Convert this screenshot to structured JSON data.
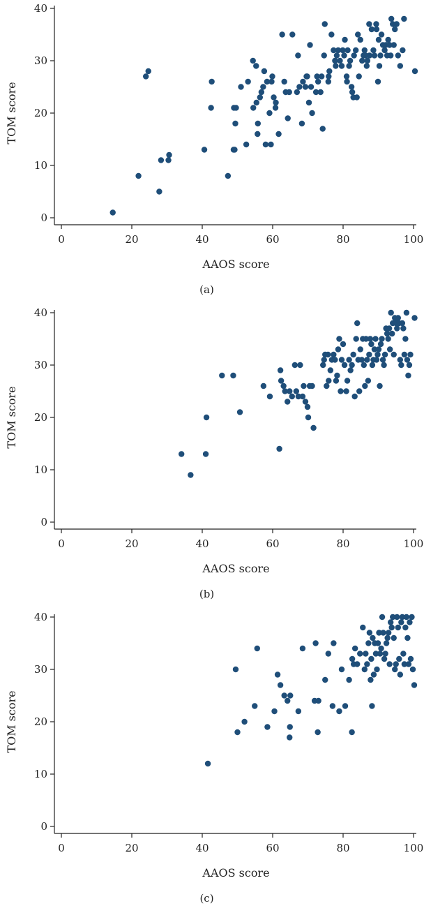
{
  "chart_data": [
    {
      "type": "scatter",
      "panel_label": "(a)",
      "xlabel": "AAOS score",
      "ylabel": "TOM score",
      "xlim": [
        0,
        100
      ],
      "ylim": [
        0,
        40
      ],
      "xticks": [
        0,
        20,
        40,
        60,
        80,
        100
      ],
      "yticks": [
        0,
        10,
        20,
        30,
        40
      ],
      "grid": false,
      "color": "#1f4e79",
      "points": [
        [
          14.6,
          1
        ],
        [
          21.9,
          8
        ],
        [
          24,
          27
        ],
        [
          24.7,
          28
        ],
        [
          27.8,
          5
        ],
        [
          28.3,
          11
        ],
        [
          30.4,
          11
        ],
        [
          30.6,
          12
        ],
        [
          40.6,
          13
        ],
        [
          42.5,
          21
        ],
        [
          42.7,
          26
        ],
        [
          47.3,
          8
        ],
        [
          48.9,
          13
        ],
        [
          49.2,
          13
        ],
        [
          49.4,
          18
        ],
        [
          49,
          21
        ],
        [
          49.6,
          21
        ],
        [
          51,
          25
        ],
        [
          52.5,
          14
        ],
        [
          53,
          26
        ],
        [
          54.5,
          21
        ],
        [
          54.4,
          30
        ],
        [
          55.3,
          29
        ],
        [
          55.4,
          22
        ],
        [
          55.7,
          16
        ],
        [
          55.8,
          18
        ],
        [
          56.4,
          23
        ],
        [
          56.8,
          24
        ],
        [
          57.3,
          25
        ],
        [
          57.6,
          28
        ],
        [
          58,
          14
        ],
        [
          58.4,
          26
        ],
        [
          59.1,
          20
        ],
        [
          59.5,
          14
        ],
        [
          59.7,
          26
        ],
        [
          59.9,
          27
        ],
        [
          60.3,
          23
        ],
        [
          60.8,
          21
        ],
        [
          60.9,
          22
        ],
        [
          61.7,
          16
        ],
        [
          62.7,
          35
        ],
        [
          63.3,
          26
        ],
        [
          63.7,
          24
        ],
        [
          64.3,
          19
        ],
        [
          64.7,
          24
        ],
        [
          65.6,
          35
        ],
        [
          66.9,
          24
        ],
        [
          67.2,
          31
        ],
        [
          67.6,
          25
        ],
        [
          68.3,
          18
        ],
        [
          68.6,
          26
        ],
        [
          69.3,
          25
        ],
        [
          69.6,
          27
        ],
        [
          69.8,
          27
        ],
        [
          70.3,
          22
        ],
        [
          70.6,
          33
        ],
        [
          70.9,
          25
        ],
        [
          71.2,
          20
        ],
        [
          72.3,
          24
        ],
        [
          72.6,
          27
        ],
        [
          72.9,
          26
        ],
        [
          73.6,
          24
        ],
        [
          73.9,
          27
        ],
        [
          74.2,
          17
        ],
        [
          74.6,
          31
        ],
        [
          74.8,
          37
        ],
        [
          75.8,
          26
        ],
        [
          75.9,
          27
        ],
        [
          76.1,
          28
        ],
        [
          76.7,
          35
        ],
        [
          77.3,
          32
        ],
        [
          77.7,
          30
        ],
        [
          77.9,
          29
        ],
        [
          78.2,
          31
        ],
        [
          78.6,
          32
        ],
        [
          79.1,
          30
        ],
        [
          79.6,
          29
        ],
        [
          79.9,
          32
        ],
        [
          80.3,
          31
        ],
        [
          80.5,
          34
        ],
        [
          81,
          27
        ],
        [
          81.1,
          26
        ],
        [
          81.3,
          32
        ],
        [
          81.7,
          29
        ],
        [
          82,
          30
        ],
        [
          82.4,
          25
        ],
        [
          82.6,
          24
        ],
        [
          82.9,
          23
        ],
        [
          83.1,
          31
        ],
        [
          83.6,
          32
        ],
        [
          83.9,
          23
        ],
        [
          84.2,
          35
        ],
        [
          84.5,
          27
        ],
        [
          84.9,
          34
        ],
        [
          85.4,
          30
        ],
        [
          85.8,
          31
        ],
        [
          86.1,
          32
        ],
        [
          86.4,
          31
        ],
        [
          86.7,
          29
        ],
        [
          86.9,
          30
        ],
        [
          87.5,
          31
        ],
        [
          87.4,
          37
        ],
        [
          88.1,
          36
        ],
        [
          88.6,
          32
        ],
        [
          88.9,
          31
        ],
        [
          89.5,
          36
        ],
        [
          89.4,
          37
        ],
        [
          89.9,
          26
        ],
        [
          90.3,
          29
        ],
        [
          90.1,
          34
        ],
        [
          90.6,
          31
        ],
        [
          90.9,
          35
        ],
        [
          91.3,
          33
        ],
        [
          91.8,
          32
        ],
        [
          92.1,
          33
        ],
        [
          92.5,
          31
        ],
        [
          92.8,
          34
        ],
        [
          93.2,
          33
        ],
        [
          93.5,
          31
        ],
        [
          93.7,
          38
        ],
        [
          94.1,
          37
        ],
        [
          94.4,
          33
        ],
        [
          94.7,
          36
        ],
        [
          95.2,
          37
        ],
        [
          95.6,
          31
        ],
        [
          96.2,
          29
        ],
        [
          96.9,
          32
        ],
        [
          97.3,
          38
        ],
        [
          100.4,
          28
        ]
      ]
    },
    {
      "type": "scatter",
      "panel_label": "(b)",
      "xlabel": "AAOS score",
      "ylabel": "TOM score",
      "xlim": [
        0,
        100
      ],
      "ylim": [
        0,
        40
      ],
      "xticks": [
        0,
        20,
        40,
        60,
        80,
        100
      ],
      "yticks": [
        0,
        10,
        20,
        30,
        40
      ],
      "grid": false,
      "color": "#1f4e79",
      "points": [
        [
          34.1,
          13
        ],
        [
          36.7,
          9
        ],
        [
          41,
          13
        ],
        [
          41.2,
          20
        ],
        [
          45.6,
          28
        ],
        [
          48.8,
          28
        ],
        [
          50.7,
          21
        ],
        [
          57.4,
          26
        ],
        [
          59.2,
          24
        ],
        [
          61.9,
          14
        ],
        [
          62.2,
          29
        ],
        [
          62.4,
          27
        ],
        [
          63.1,
          26
        ],
        [
          63.5,
          25
        ],
        [
          64.2,
          23
        ],
        [
          64.8,
          25
        ],
        [
          65.5,
          24
        ],
        [
          66.3,
          30
        ],
        [
          66.7,
          25
        ],
        [
          67.3,
          24
        ],
        [
          67.8,
          30
        ],
        [
          68.5,
          24
        ],
        [
          68.8,
          26
        ],
        [
          69.3,
          23
        ],
        [
          69.9,
          22
        ],
        [
          70.1,
          20
        ],
        [
          70.5,
          26
        ],
        [
          71.2,
          26
        ],
        [
          71.6,
          18
        ],
        [
          74.3,
          30
        ],
        [
          74.6,
          31
        ],
        [
          74.9,
          32
        ],
        [
          75.3,
          26
        ],
        [
          75.7,
          32
        ],
        [
          75.9,
          27
        ],
        [
          76.4,
          29
        ],
        [
          76.8,
          31
        ],
        [
          77.3,
          32
        ],
        [
          77.7,
          31
        ],
        [
          78,
          27
        ],
        [
          78.3,
          28
        ],
        [
          78.6,
          33
        ],
        [
          78.9,
          35
        ],
        [
          79.3,
          25
        ],
        [
          79.6,
          31
        ],
        [
          80,
          34
        ],
        [
          80.4,
          30
        ],
        [
          80.9,
          25
        ],
        [
          81.2,
          27
        ],
        [
          81.7,
          31
        ],
        [
          82.1,
          29
        ],
        [
          82.5,
          30
        ],
        [
          82.9,
          32
        ],
        [
          83.3,
          24
        ],
        [
          83.7,
          35
        ],
        [
          84,
          38
        ],
        [
          84.3,
          31
        ],
        [
          84.6,
          25
        ],
        [
          84.9,
          33
        ],
        [
          85.3,
          31
        ],
        [
          85.6,
          35
        ],
        [
          85.9,
          30
        ],
        [
          86.2,
          26
        ],
        [
          86.5,
          35
        ],
        [
          86.8,
          31
        ],
        [
          87.1,
          27
        ],
        [
          87.4,
          32
        ],
        [
          87.7,
          35
        ],
        [
          88,
          34
        ],
        [
          88.3,
          30
        ],
        [
          88.6,
          31
        ],
        [
          88.9,
          33
        ],
        [
          89.2,
          35
        ],
        [
          89.5,
          31
        ],
        [
          89.8,
          32
        ],
        [
          90.1,
          33
        ],
        [
          90.4,
          26
        ],
        [
          90.7,
          34
        ],
        [
          91,
          35
        ],
        [
          91.3,
          31
        ],
        [
          91.6,
          30
        ],
        [
          91.9,
          32
        ],
        [
          92.2,
          37
        ],
        [
          92.5,
          36
        ],
        [
          92.8,
          35
        ],
        [
          93.1,
          37
        ],
        [
          93.3,
          33
        ],
        [
          93.6,
          40
        ],
        [
          93.9,
          36
        ],
        [
          94.1,
          38
        ],
        [
          94.4,
          32
        ],
        [
          94.7,
          39
        ],
        [
          95,
          38
        ],
        [
          95.3,
          37
        ],
        [
          95.6,
          39
        ],
        [
          95.9,
          38
        ],
        [
          96.2,
          31
        ],
        [
          96.5,
          30
        ],
        [
          96.8,
          38
        ],
        [
          97.1,
          37
        ],
        [
          97.4,
          32
        ],
        [
          97.7,
          35
        ],
        [
          98,
          40
        ],
        [
          98.2,
          31
        ],
        [
          98.5,
          28
        ],
        [
          98.8,
          30
        ],
        [
          99.1,
          32
        ],
        [
          100.3,
          39
        ]
      ]
    },
    {
      "type": "scatter",
      "panel_label": "(c)",
      "xlabel": "AAOS score",
      "ylabel": "TOM score",
      "xlim": [
        0,
        100
      ],
      "ylim": [
        0,
        40
      ],
      "xticks": [
        0,
        20,
        40,
        60,
        80,
        100
      ],
      "yticks": [
        0,
        10,
        20,
        30,
        40
      ],
      "grid": false,
      "color": "#1f4e79",
      "points": [
        [
          41.6,
          12
        ],
        [
          49.5,
          30
        ],
        [
          50,
          18
        ],
        [
          52,
          20
        ],
        [
          54.9,
          23
        ],
        [
          55.6,
          34
        ],
        [
          58.5,
          19
        ],
        [
          60.5,
          22
        ],
        [
          61.4,
          29
        ],
        [
          62.2,
          27
        ],
        [
          63.3,
          25
        ],
        [
          64.2,
          24
        ],
        [
          64.8,
          17
        ],
        [
          64.9,
          19
        ],
        [
          65,
          25
        ],
        [
          67.3,
          22
        ],
        [
          68.5,
          34
        ],
        [
          71.9,
          24
        ],
        [
          72.2,
          35
        ],
        [
          72.8,
          18
        ],
        [
          73,
          24
        ],
        [
          74.9,
          28
        ],
        [
          75.8,
          33
        ],
        [
          77,
          23
        ],
        [
          77.3,
          35
        ],
        [
          78.9,
          22
        ],
        [
          79.6,
          30
        ],
        [
          80.6,
          23
        ],
        [
          81.7,
          28
        ],
        [
          82.5,
          18
        ],
        [
          82.6,
          32
        ],
        [
          83,
          31
        ],
        [
          83.4,
          34
        ],
        [
          84,
          31
        ],
        [
          84.8,
          33
        ],
        [
          85.6,
          38
        ],
        [
          86.1,
          30
        ],
        [
          86.4,
          33
        ],
        [
          86.8,
          31
        ],
        [
          87.2,
          35
        ],
        [
          87.5,
          37
        ],
        [
          87.8,
          28
        ],
        [
          88,
          32
        ],
        [
          88.2,
          23
        ],
        [
          88.4,
          36
        ],
        [
          88.7,
          29
        ],
        [
          89,
          35
        ],
        [
          89.3,
          33
        ],
        [
          89.6,
          30
        ],
        [
          89.9,
          35
        ],
        [
          90.2,
          37
        ],
        [
          90.5,
          33
        ],
        [
          90.8,
          34
        ],
        [
          91.1,
          40
        ],
        [
          91.4,
          37
        ],
        [
          91.7,
          32
        ],
        [
          92,
          33
        ],
        [
          92.3,
          35
        ],
        [
          92.6,
          36
        ],
        [
          92.9,
          37
        ],
        [
          93.2,
          31
        ],
        [
          93.5,
          39
        ],
        [
          93.8,
          38
        ],
        [
          94.1,
          40
        ],
        [
          94.4,
          36
        ],
        [
          94.7,
          30
        ],
        [
          95,
          31
        ],
        [
          95.3,
          40
        ],
        [
          95.6,
          38
        ],
        [
          95.9,
          32
        ],
        [
          96.2,
          29
        ],
        [
          96.5,
          39
        ],
        [
          96.8,
          40
        ],
        [
          97.1,
          33
        ],
        [
          97.4,
          31
        ],
        [
          97.7,
          38
        ],
        [
          98,
          40
        ],
        [
          98.3,
          36
        ],
        [
          98.6,
          31
        ],
        [
          98.9,
          39
        ],
        [
          99.2,
          32
        ],
        [
          99.5,
          40
        ],
        [
          99.8,
          30
        ],
        [
          100.2,
          27
        ]
      ]
    }
  ]
}
